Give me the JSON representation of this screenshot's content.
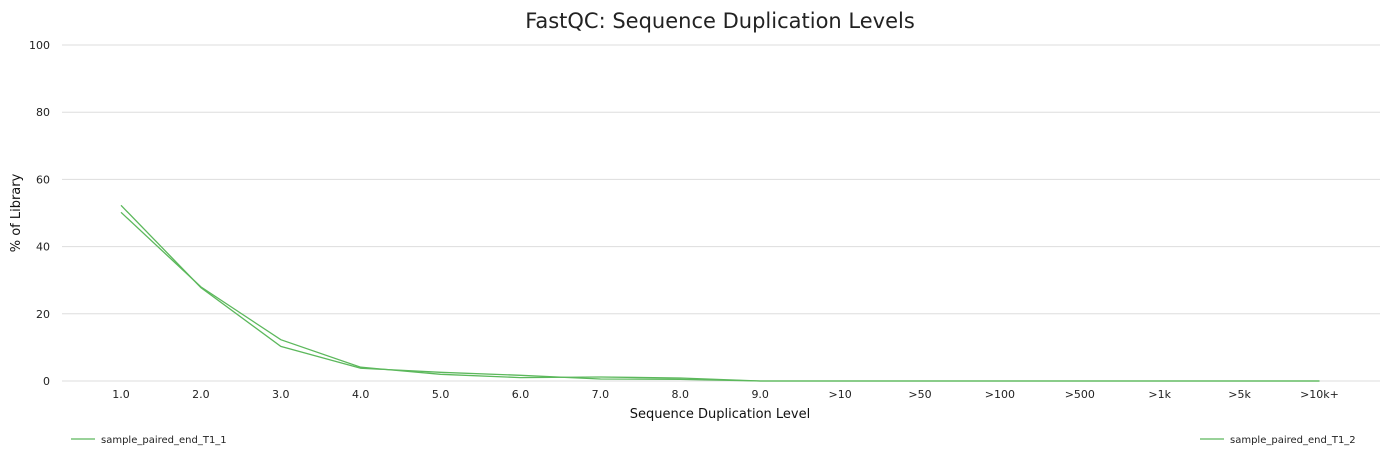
{
  "chart_data": {
    "type": "line",
    "title": "FastQC: Sequence Duplication Levels",
    "xlabel": "Sequence Duplication Level",
    "ylabel": "% of Library",
    "ylim": [
      0,
      100
    ],
    "yticks": [
      "0",
      "20",
      "40",
      "60",
      "80",
      "100"
    ],
    "grid": true,
    "legend_position": "bottom",
    "categories": [
      "1.0",
      "2.0",
      "3.0",
      "4.0",
      "5.0",
      "6.0",
      "7.0",
      "8.0",
      "9.0",
      ">10",
      ">50",
      ">100",
      ">500",
      ">1k",
      ">5k",
      ">10k+"
    ],
    "series": [
      {
        "name": "sample_paired_end_T1_1",
        "color": "#5cb85c",
        "values": [
          52.3,
          27.8,
          10.3,
          3.8,
          2.6,
          1.7,
          0.6,
          0.5,
          0,
          0,
          0,
          0,
          0,
          0,
          0,
          0
        ]
      },
      {
        "name": "sample_paired_end_T1_2",
        "color": "#5cb85c",
        "values": [
          50.2,
          28.0,
          12.3,
          4.1,
          2.0,
          1.0,
          1.2,
          0.9,
          0,
          0,
          0,
          0,
          0,
          0,
          0,
          0
        ]
      }
    ]
  }
}
